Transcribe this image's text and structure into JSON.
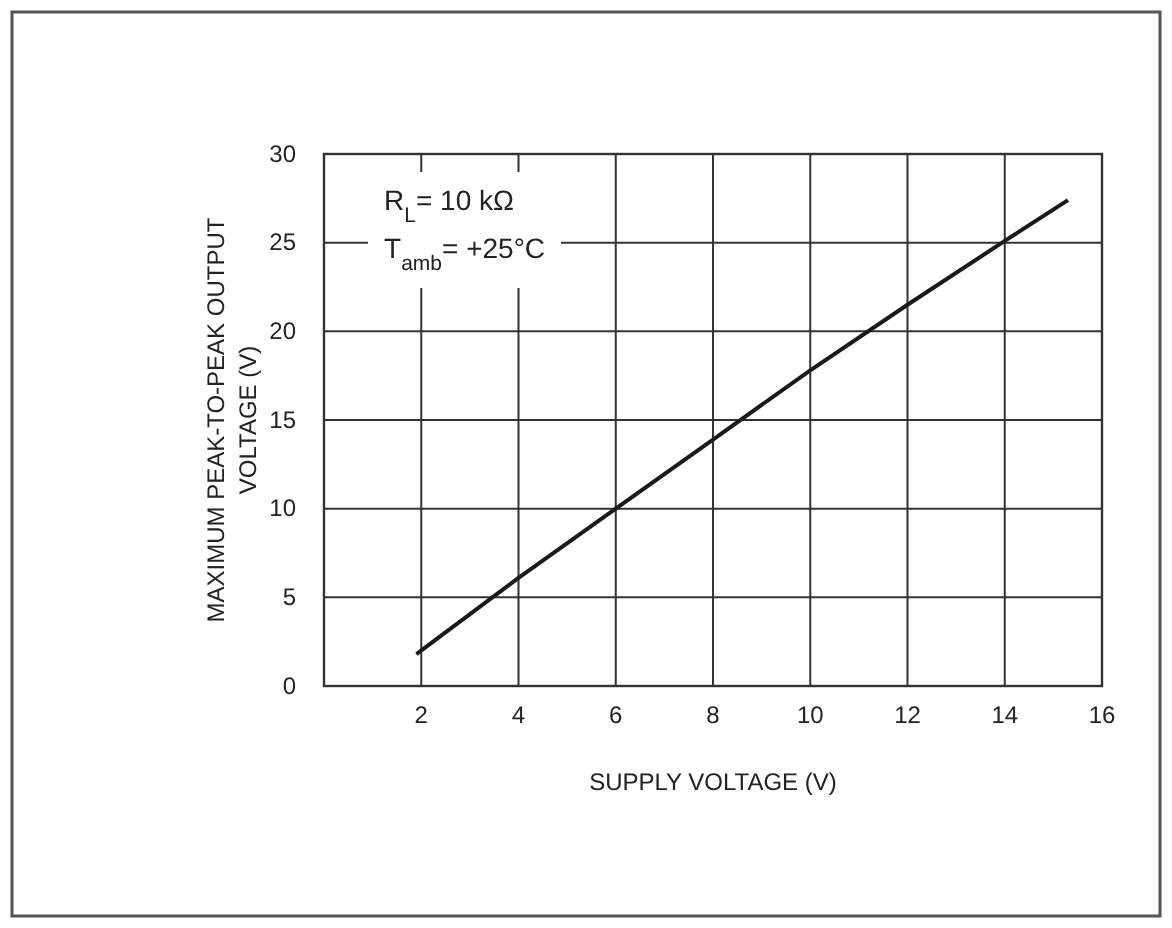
{
  "chart_data": {
    "type": "line",
    "xlabel": "SUPPLY VOLTAGE (V)",
    "ylabel": "MAXIMUM PEAK-TO-PEAK OUTPUT VOLTAGE (V)",
    "x": [
      1.9,
      4,
      6,
      8,
      10,
      12,
      14,
      15.3
    ],
    "series": [
      {
        "color": "#1a1a1a",
        "values": [
          1.8,
          6.1,
          10,
          13.9,
          17.8,
          21.5,
          25.1,
          27.4
        ]
      }
    ],
    "xlim": [
      0,
      16
    ],
    "xticks": [
      {
        "value": 0,
        "label": null
      },
      2,
      4,
      6,
      8,
      10,
      12,
      14,
      16
    ],
    "ylim": [
      0,
      30
    ],
    "yticks": [
      0,
      5,
      10,
      15,
      20,
      25,
      30
    ],
    "grid": true,
    "marker": "none",
    "line_style": "solid",
    "annotations": [
      "R$_{L}$= 10 kΩ",
      "T$_{amb}$= +25°C"
    ]
  }
}
